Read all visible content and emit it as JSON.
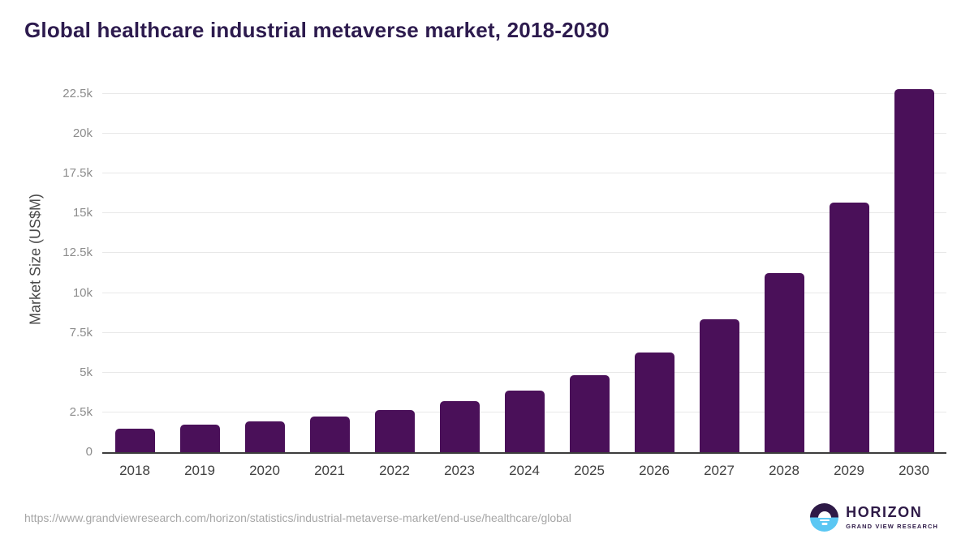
{
  "title": "Global healthcare industrial metaverse market, 2018-2030",
  "source_url": "https://www.grandviewresearch.com/horizon/statistics/industrial-metaverse-market/end-use/healthcare/global",
  "logo": {
    "name": "HORIZON",
    "subtitle": "GRAND VIEW RESEARCH"
  },
  "colors": {
    "bar": "#4a1059",
    "title_text": "#2d1b4e",
    "tick_label": "#8c8c8c",
    "year_label": "#404040",
    "axis_line": "#3c3c3c",
    "gridline": "#e8e8e8",
    "url_text": "#a6a6a6",
    "logo_purple": "#2e1a47",
    "logo_blue": "#5bc7f3"
  },
  "chart_data": {
    "type": "bar",
    "title": "Global healthcare industrial metaverse market, 2018-2030",
    "categories": [
      "2018",
      "2019",
      "2020",
      "2021",
      "2022",
      "2023",
      "2024",
      "2025",
      "2026",
      "2027",
      "2028",
      "2029",
      "2030"
    ],
    "values": [
      1490,
      1740,
      1940,
      2250,
      2670,
      3230,
      3860,
      4830,
      6280,
      8360,
      11230,
      15700,
      22800
    ],
    "xlabel": "",
    "ylabel": "Market Size (US$M)",
    "ylim": [
      0,
      22900
    ],
    "yticks": [
      {
        "value": 0,
        "label": "0"
      },
      {
        "value": 2500,
        "label": "2.5k"
      },
      {
        "value": 5000,
        "label": "5k"
      },
      {
        "value": 7500,
        "label": "7.5k"
      },
      {
        "value": 10000,
        "label": "10k"
      },
      {
        "value": 12500,
        "label": "12.5k"
      },
      {
        "value": 15000,
        "label": "15k"
      },
      {
        "value": 17500,
        "label": "17.5k"
      },
      {
        "value": 20000,
        "label": "20k"
      },
      {
        "value": 22500,
        "label": "22.5k"
      }
    ],
    "grid": "horizontal",
    "legend": "none",
    "bar_color": "#4a1059"
  }
}
